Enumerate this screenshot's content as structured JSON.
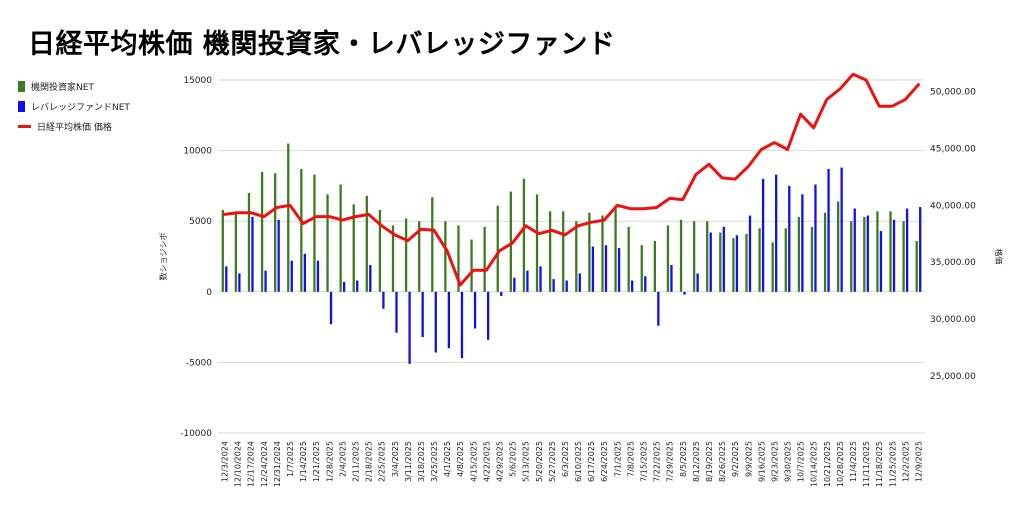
{
  "title": "日経平均株価 機関投資家・レバレッジファンド",
  "colors": {
    "institutional": "#3a7d1e",
    "leveraged": "#1010ee",
    "nikkei": "#ee1111",
    "grid": "#d9d9d9",
    "text": "#222222"
  },
  "legend": [
    {
      "label": "機関投資家NET",
      "type": "bar",
      "color": "#3a7d1e"
    },
    {
      "label": "レバレッジファンドNET",
      "type": "bar",
      "color": "#1010ee"
    },
    {
      "label": "日経平均株価 価格",
      "type": "line",
      "color": "#ee1111"
    }
  ],
  "chart_data": {
    "type": "bar",
    "title": "日経平均株価 機関投資家・レバレッジファンド",
    "ylabel": "数ショジシボ",
    "y2label": "格価",
    "ylim": [
      -10000,
      15000
    ],
    "yticks": [
      "15000",
      "10000",
      "5000",
      "0",
      "-5000",
      "-10000"
    ],
    "yticks_values": [
      15000,
      10000,
      5000,
      0,
      -5000,
      -10000
    ],
    "y2lim": [
      20000,
      51000
    ],
    "y2ticks": [
      "50,000.00",
      "45,000.00",
      "40,000.00",
      "35,000.00",
      "30,000.00",
      "25,000.00"
    ],
    "y2ticks_values": [
      50000,
      45000,
      40000,
      35000,
      30000,
      25000
    ],
    "grid": "horizontal",
    "legend_position": "left",
    "categories": [
      "12/3/2024",
      "12/10/2024",
      "12/17/2024",
      "12/24/2024",
      "12/31/2024",
      "1/7/2025",
      "1/14/2025",
      "1/21/2025",
      "1/28/2025",
      "2/4/2025",
      "2/11/2025",
      "2/18/2025",
      "2/25/2025",
      "3/4/2025",
      "3/11/2025",
      "3/18/2025",
      "3/25/2025",
      "4/1/2025",
      "4/8/2025",
      "4/15/2025",
      "4/22/2025",
      "4/29/2025",
      "5/6/2025",
      "5/13/2025",
      "5/20/2025",
      "5/27/2025",
      "6/3/2025",
      "6/10/2025",
      "6/17/2025",
      "6/24/2025",
      "7/1/2025",
      "7/8/2025",
      "7/15/2025",
      "7/22/2025",
      "7/29/2025",
      "8/5/2025",
      "8/12/2025",
      "8/19/2025",
      "8/26/2025",
      "9/2/2025",
      "9/9/2025",
      "9/16/2025",
      "9/23/2025",
      "9/30/2025",
      "10/7/2025",
      "10/14/2025",
      "10/21/2025",
      "10/28/2025",
      "11/4/2025",
      "11/11/2025",
      "11/18/2025",
      "11/25/2025",
      "12/2/2025",
      "12/9/2025"
    ],
    "series": [
      {
        "name": "機関投資家NET",
        "type": "bar",
        "axis": "left",
        "values": [
          5800,
          5700,
          7000,
          8500,
          8400,
          10500,
          8700,
          8300,
          6900,
          7600,
          6200,
          6800,
          5800,
          4700,
          5200,
          5000,
          6700,
          5000,
          4700,
          3700,
          4600,
          6100,
          7100,
          8000,
          6900,
          5700,
          5700,
          5000,
          5600,
          5400,
          5900,
          4600,
          3300,
          3600,
          4700,
          5100,
          5000,
          5000,
          4200,
          3800,
          4100,
          4500,
          3500,
          4500,
          5300,
          4600,
          5600,
          6400,
          5000,
          5300,
          5700,
          5700,
          5000,
          3600
        ]
      },
      {
        "name": "レバレッジファンドNET",
        "type": "bar",
        "axis": "left",
        "values": [
          1800,
          1300,
          5300,
          1500,
          5100,
          2200,
          2700,
          2200,
          -2300,
          700,
          800,
          1900,
          -1200,
          -2900,
          -5100,
          -3200,
          -4300,
          -4000,
          -4700,
          -2600,
          -3400,
          -300,
          1000,
          1500,
          1800,
          900,
          800,
          1300,
          3200,
          3300,
          3100,
          800,
          1100,
          -2400,
          1900,
          -200,
          1300,
          4200,
          4600,
          4000,
          5400,
          8000,
          8300,
          7500,
          6900,
          7600,
          8700,
          8800,
          5900,
          5400,
          4300,
          5100,
          5900,
          6000
        ]
      },
      {
        "name": "日経平均株価 価格",
        "type": "line",
        "axis": "right",
        "values": [
          39200,
          39350,
          39350,
          39000,
          39800,
          40000,
          38400,
          39000,
          39000,
          38700,
          39000,
          39200,
          38200,
          37400,
          36900,
          37900,
          37800,
          36000,
          33000,
          34300,
          34300,
          36000,
          36700,
          38200,
          37500,
          37800,
          37400,
          38200,
          38500,
          38700,
          40000,
          39700,
          39700,
          39800,
          40600,
          40500,
          42700,
          43600,
          42400,
          42300,
          43400,
          44900,
          45500,
          44900,
          48000,
          46800,
          49300,
          50200,
          51500,
          51000,
          48700,
          48700,
          49300,
          50600
        ]
      }
    ]
  }
}
